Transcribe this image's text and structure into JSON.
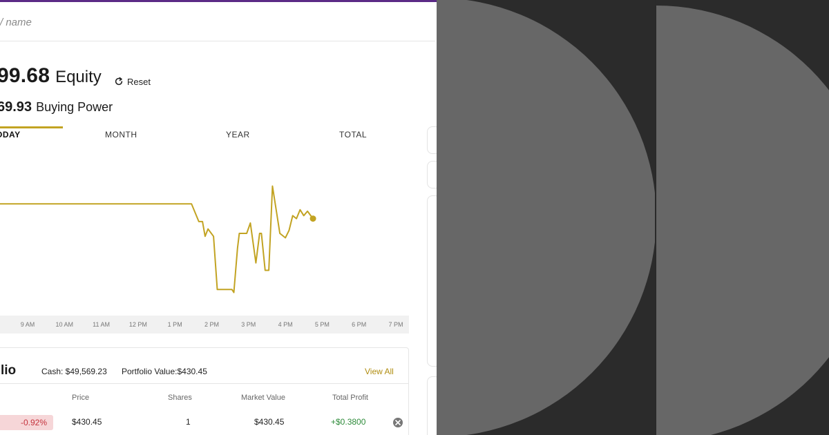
{
  "search": {
    "placeholder": "/ name"
  },
  "account": {
    "equity_value": "99.68",
    "equity_label": "Equity",
    "reset_label": "Reset",
    "buying_power_value": "69.93",
    "buying_power_label": "Buying Power"
  },
  "tabs": [
    {
      "label": "ODAY",
      "active": true
    },
    {
      "label": "MONTH",
      "active": false
    },
    {
      "label": "YEAR",
      "active": false
    },
    {
      "label": "TOTAL",
      "active": false
    }
  ],
  "chart_data": {
    "type": "line",
    "line_color": "#c2a322",
    "x_ticks": [
      "9 AM",
      "10 AM",
      "11 AM",
      "12 PM",
      "1 PM",
      "2 PM",
      "3 PM",
      "4 PM",
      "5 PM",
      "6 PM",
      "7 PM"
    ],
    "x_range": [
      8.25,
      19.0
    ],
    "y_range": [
      0,
      100
    ],
    "points": [
      [
        8.25,
        70
      ],
      [
        13.45,
        70
      ],
      [
        13.65,
        58
      ],
      [
        13.75,
        58
      ],
      [
        13.82,
        48
      ],
      [
        13.9,
        53
      ],
      [
        14.05,
        48
      ],
      [
        14.15,
        12
      ],
      [
        14.55,
        12
      ],
      [
        14.6,
        10
      ],
      [
        14.7,
        40
      ],
      [
        14.75,
        50
      ],
      [
        14.95,
        50
      ],
      [
        15.05,
        57
      ],
      [
        15.2,
        30
      ],
      [
        15.3,
        50
      ],
      [
        15.35,
        50
      ],
      [
        15.45,
        25
      ],
      [
        15.55,
        25
      ],
      [
        15.65,
        82
      ],
      [
        15.85,
        50
      ],
      [
        16.0,
        47
      ],
      [
        16.1,
        52
      ],
      [
        16.2,
        62
      ],
      [
        16.3,
        60
      ],
      [
        16.4,
        66
      ],
      [
        16.5,
        62
      ],
      [
        16.6,
        65
      ],
      [
        16.75,
        60
      ]
    ],
    "current_point": [
      16.75,
      60
    ]
  },
  "portfolio": {
    "title": "lio",
    "cash": "Cash: $49,569.23",
    "portfolio_value": "Portfolio Value:$430.45",
    "view_all": "View All",
    "columns": [
      "Price",
      "Shares",
      "Market Value",
      "Total Profit"
    ],
    "rows": [
      {
        "change": "-0.92%",
        "price": "$430.45",
        "shares": "1",
        "market_value": "$430.45",
        "total_profit": "+$0.3800"
      }
    ]
  },
  "colors": {
    "accent": "#c2a322",
    "brand": "#5b2a86",
    "negative": "#c4323c",
    "positive": "#2e8b3a"
  },
  "icons": {
    "reset": "refresh-icon",
    "remove": "close-icon"
  }
}
